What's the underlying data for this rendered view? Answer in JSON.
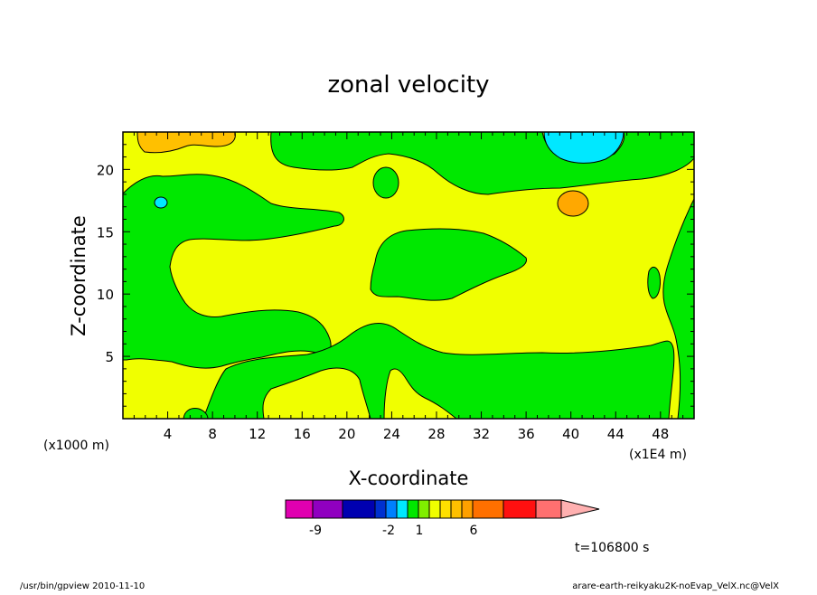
{
  "chart_data": {
    "type": "heatmap",
    "title": "zonal velocity",
    "xlabel": "X-coordinate",
    "ylabel": "Z-coordinate",
    "xlim": [
      0,
      51
    ],
    "ylim": [
      0,
      23
    ],
    "x_ticks": [
      "4",
      "8",
      "12",
      "16",
      "20",
      "24",
      "28",
      "32",
      "36",
      "40",
      "44",
      "48"
    ],
    "y_ticks": [
      "5",
      "10",
      "15",
      "20"
    ],
    "x_unit_note": "(x1E4 m)",
    "y_unit_note": "(x1000 m)",
    "colors": {
      "background_level": "#f0ff00",
      "green_level": "#00e800",
      "orange_level": "#ffc000",
      "light_orange_level": "#ffa800",
      "cyan_level": "#00e8ff"
    },
    "colorbar": {
      "colors": [
        "#e000b0",
        "#9000c0",
        "#0000b0",
        "#0030d0",
        "#0080ff",
        "#00e8ff",
        "#00e800",
        "#80f000",
        "#f0ff00",
        "#ffe000",
        "#ffc000",
        "#ffa000",
        "#ff7000",
        "#ff1010",
        "#ff7070",
        "#ffb0b0"
      ],
      "labels": [
        "-9",
        "-2",
        "1",
        "6"
      ]
    },
    "time_label": "t=106800 s"
  },
  "footer": {
    "left": "/usr/bin/gpview  2010-11-10",
    "right": "arare-earth-reikyaku2K-noEvap_VelX.nc@VelX"
  }
}
